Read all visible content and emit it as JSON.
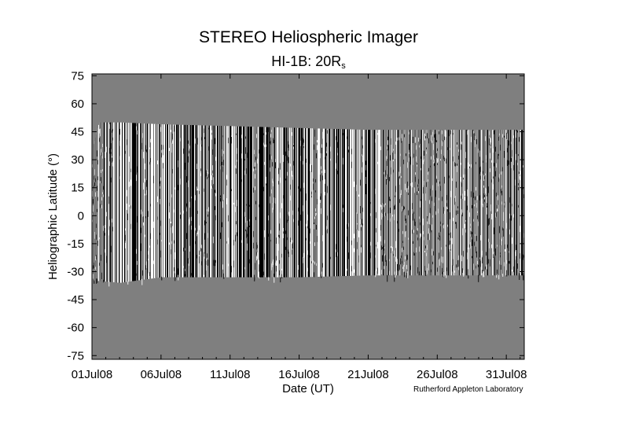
{
  "chart_data": {
    "type": "heatmap",
    "title": "STEREO Heliospheric Imager",
    "subtitle_main": "HI-1B: 20R",
    "subtitle_sub": "s",
    "xlabel": "Date (UT)",
    "ylabel": "Heliographic Latitude (°)",
    "credit": "Rutherford Appleton Laboratory",
    "x_ticks": [
      "01Jul08",
      "06Jul08",
      "11Jul08",
      "16Jul08",
      "21Jul08",
      "26Jul08",
      "31Jul08"
    ],
    "x_tick_days": [
      0,
      5,
      10,
      15,
      20,
      25,
      30
    ],
    "xlim_days": [
      0,
      31.3
    ],
    "y_ticks": [
      75,
      60,
      45,
      30,
      15,
      0,
      -15,
      -30,
      -45,
      -60,
      -75
    ],
    "ylim": [
      -77,
      76
    ],
    "data_band": [
      {
        "day": 0,
        "top": 35,
        "bottom": -35
      },
      {
        "day": 0.5,
        "top": 50,
        "bottom": -35
      },
      {
        "day": 2,
        "top": 50,
        "bottom": -36
      },
      {
        "day": 5,
        "top": 49,
        "bottom": -33
      },
      {
        "day": 10,
        "top": 48,
        "bottom": -33
      },
      {
        "day": 15,
        "top": 47,
        "bottom": -33
      },
      {
        "day": 20,
        "top": 46,
        "bottom": -32
      },
      {
        "day": 25,
        "top": 46,
        "bottom": -32
      },
      {
        "day": 31.3,
        "top": 46,
        "bottom": -32
      }
    ],
    "colors": {
      "background": "#7f7f7f",
      "frame": "#000000"
    },
    "colormap": "grayscale running-difference",
    "grid": false
  }
}
